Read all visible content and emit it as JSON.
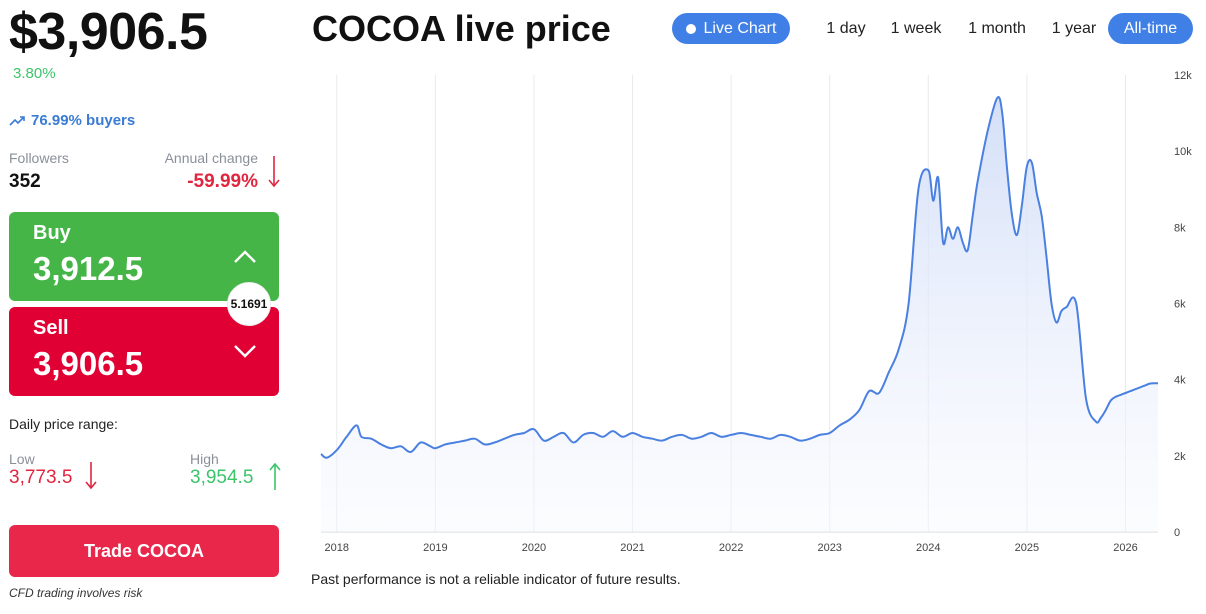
{
  "header": {
    "price": "$3,906.5",
    "change": "3.80%",
    "buyers": "76.99% buyers",
    "title": "COCOA live price"
  },
  "stats": {
    "followers_label": "Followers",
    "followers_value": "352",
    "annual_label": "Annual change",
    "annual_value": "-59.99%"
  },
  "trade": {
    "buy_label": "Buy",
    "buy_value": "3,912.5",
    "sell_label": "Sell",
    "sell_value": "3,906.5",
    "spread": "5.1691",
    "cta": "Trade COCOA",
    "risk": "CFD trading involves risk"
  },
  "daily": {
    "label": "Daily price range:",
    "low_label": "Low",
    "low_value": "3,773.5",
    "high_label": "High",
    "high_value": "3,954.5"
  },
  "controls": {
    "live_chart": "Live Chart",
    "ranges": [
      "1 day",
      "1 week",
      "1 month",
      "1 year",
      "All-time"
    ],
    "active_range": "All-time"
  },
  "colors": {
    "line": "#4a80e0",
    "green": "#44b546",
    "red": "#e00034",
    "accent": "#3f7fe6"
  },
  "disclaimer": "Past performance is not a reliable indicator of future results.",
  "chart_data": {
    "type": "area",
    "title": "",
    "xlabel": "",
    "ylabel": "",
    "x_ticks": [
      "2018",
      "2019",
      "2020",
      "2021",
      "2022",
      "2023",
      "2024",
      "2025",
      "2026"
    ],
    "y_ticks": [
      "0",
      "2k",
      "4k",
      "6k",
      "8k",
      "10k",
      "12k"
    ],
    "xlim": [
      2017.84,
      2026.33
    ],
    "ylim": [
      0,
      12000
    ],
    "grid": "vertical",
    "series": [
      {
        "name": "",
        "x": [
          2017.84,
          2017.9,
          2018.0,
          2018.1,
          2018.2,
          2018.25,
          2018.35,
          2018.45,
          2018.55,
          2018.65,
          2018.75,
          2018.85,
          2018.95,
          2019.0,
          2019.1,
          2019.2,
          2019.3,
          2019.4,
          2019.5,
          2019.6,
          2019.7,
          2019.8,
          2019.9,
          2020.0,
          2020.1,
          2020.2,
          2020.3,
          2020.4,
          2020.5,
          2020.6,
          2020.7,
          2020.8,
          2020.9,
          2021.0,
          2021.1,
          2021.2,
          2021.3,
          2021.4,
          2021.5,
          2021.6,
          2021.7,
          2021.8,
          2021.9,
          2022.0,
          2022.1,
          2022.2,
          2022.3,
          2022.4,
          2022.5,
          2022.6,
          2022.7,
          2022.8,
          2022.9,
          2023.0,
          2023.1,
          2023.2,
          2023.3,
          2023.4,
          2023.5,
          2023.6,
          2023.7,
          2023.8,
          2023.9,
          2024.0,
          2024.05,
          2024.1,
          2024.15,
          2024.2,
          2024.25,
          2024.3,
          2024.35,
          2024.4,
          2024.45,
          2024.5,
          2024.6,
          2024.7,
          2024.75,
          2024.8,
          2024.85,
          2024.9,
          2024.95,
          2025.0,
          2025.05,
          2025.1,
          2025.15,
          2025.2,
          2025.25,
          2025.3,
          2025.35,
          2025.4,
          2025.5,
          2025.6,
          2025.7,
          2025.75,
          2025.8,
          2025.85,
          2025.9,
          2025.95,
          2026.0,
          2026.05,
          2026.1,
          2026.15,
          2026.2,
          2026.25,
          2026.3,
          2026.33
        ],
        "y": [
          2050,
          1950,
          2150,
          2500,
          2800,
          2500,
          2450,
          2300,
          2200,
          2250,
          2100,
          2350,
          2250,
          2200,
          2300,
          2350,
          2400,
          2450,
          2300,
          2350,
          2450,
          2550,
          2600,
          2700,
          2400,
          2500,
          2600,
          2350,
          2550,
          2600,
          2500,
          2650,
          2500,
          2600,
          2500,
          2450,
          2400,
          2500,
          2550,
          2450,
          2500,
          2600,
          2500,
          2550,
          2600,
          2550,
          2500,
          2450,
          2550,
          2500,
          2400,
          2450,
          2550,
          2600,
          2800,
          2950,
          3200,
          3700,
          3650,
          4200,
          4800,
          6000,
          9000,
          9500,
          8700,
          9300,
          7600,
          8000,
          7700,
          8000,
          7600,
          7400,
          8300,
          9200,
          10500,
          11400,
          11000,
          9500,
          8300,
          7800,
          8600,
          9600,
          9700,
          8900,
          8300,
          7200,
          6000,
          5500,
          5800,
          5900,
          6000,
          3500,
          2900,
          3000,
          3200,
          3450,
          3550,
          3600,
          3650,
          3700,
          3750,
          3800,
          3850,
          3900,
          3906,
          3906
        ]
      }
    ]
  }
}
